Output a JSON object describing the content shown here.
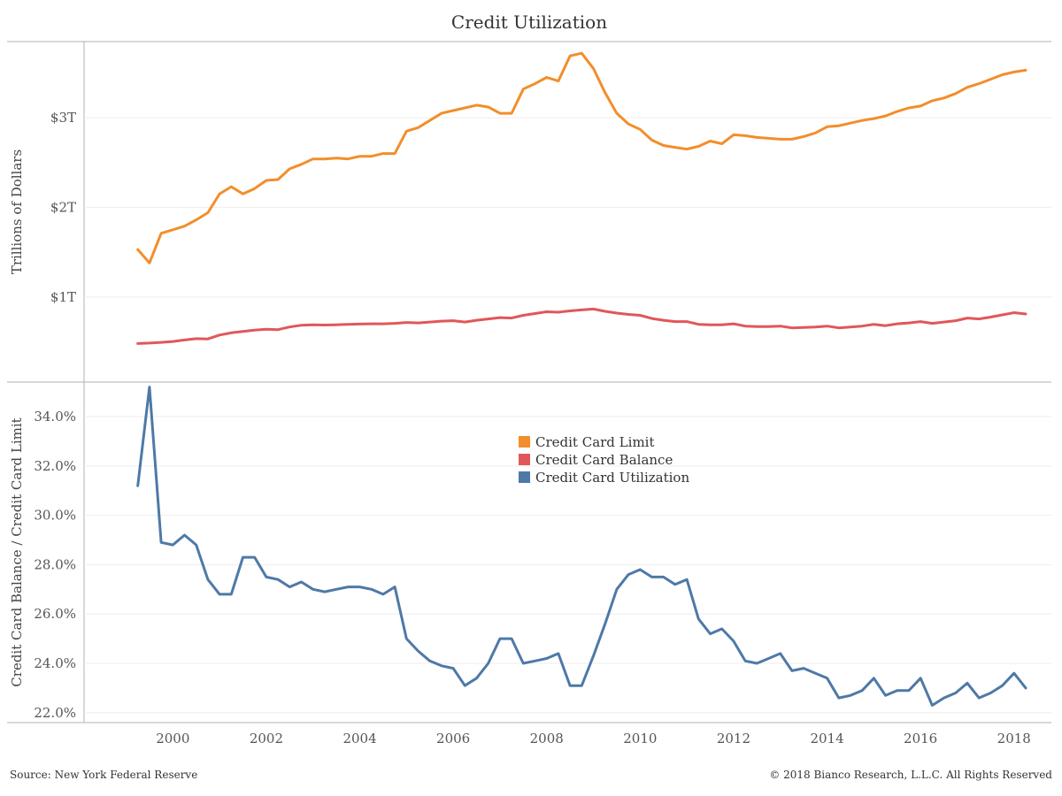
{
  "colors": {
    "limit": "#f28e2b",
    "balance": "#e15759",
    "utilization": "#4e79a7",
    "frame": "#b0b0b0",
    "gridline": "#eeeeee",
    "text": "#333333"
  },
  "chart_data": [
    {
      "type": "line",
      "title": "Credit Utilization",
      "ylabel": "Trillions of Dollars",
      "xlabel": "",
      "x_unit": "year",
      "xlim": [
        1998.1,
        2018.8
      ],
      "ylim": [
        0.05,
        3.85
      ],
      "y_ticks": [
        {
          "value": 1,
          "label": "$1T"
        },
        {
          "value": 2,
          "label": "$2T"
        },
        {
          "value": 3,
          "label": "$3T"
        }
      ],
      "grid": true,
      "series": [
        {
          "name": "Credit Card Limit",
          "color_key": "limit",
          "points": [
            [
              1999.25,
              1.53
            ],
            [
              1999.5,
              1.38
            ],
            [
              1999.75,
              1.71
            ],
            [
              2000.0,
              1.75
            ],
            [
              2000.25,
              1.79
            ],
            [
              2000.5,
              1.86
            ],
            [
              2000.75,
              1.94
            ],
            [
              2001.0,
              2.15
            ],
            [
              2001.25,
              2.23
            ],
            [
              2001.5,
              2.15
            ],
            [
              2001.75,
              2.21
            ],
            [
              2002.0,
              2.3
            ],
            [
              2002.25,
              2.31
            ],
            [
              2002.5,
              2.43
            ],
            [
              2002.75,
              2.48
            ],
            [
              2003.0,
              2.54
            ],
            [
              2003.25,
              2.54
            ],
            [
              2003.5,
              2.55
            ],
            [
              2003.75,
              2.54
            ],
            [
              2004.0,
              2.57
            ],
            [
              2004.25,
              2.57
            ],
            [
              2004.5,
              2.6
            ],
            [
              2004.75,
              2.6
            ],
            [
              2005.0,
              2.85
            ],
            [
              2005.25,
              2.89
            ],
            [
              2005.5,
              2.97
            ],
            [
              2005.75,
              3.05
            ],
            [
              2006.0,
              3.08
            ],
            [
              2006.25,
              3.11
            ],
            [
              2006.5,
              3.14
            ],
            [
              2006.75,
              3.12
            ],
            [
              2007.0,
              3.05
            ],
            [
              2007.25,
              3.05
            ],
            [
              2007.5,
              3.32
            ],
            [
              2007.75,
              3.38
            ],
            [
              2008.0,
              3.45
            ],
            [
              2008.25,
              3.41
            ],
            [
              2008.5,
              3.69
            ],
            [
              2008.75,
              3.72
            ],
            [
              2009.0,
              3.55
            ],
            [
              2009.25,
              3.28
            ],
            [
              2009.5,
              3.05
            ],
            [
              2009.75,
              2.93
            ],
            [
              2010.0,
              2.87
            ],
            [
              2010.25,
              2.75
            ],
            [
              2010.5,
              2.69
            ],
            [
              2010.75,
              2.67
            ],
            [
              2011.0,
              2.65
            ],
            [
              2011.25,
              2.68
            ],
            [
              2011.5,
              2.74
            ],
            [
              2011.75,
              2.71
            ],
            [
              2012.0,
              2.81
            ],
            [
              2012.25,
              2.8
            ],
            [
              2012.5,
              2.78
            ],
            [
              2012.75,
              2.77
            ],
            [
              2013.0,
              2.76
            ],
            [
              2013.25,
              2.76
            ],
            [
              2013.5,
              2.79
            ],
            [
              2013.75,
              2.83
            ],
            [
              2014.0,
              2.9
            ],
            [
              2014.25,
              2.91
            ],
            [
              2014.5,
              2.94
            ],
            [
              2014.75,
              2.97
            ],
            [
              2015.0,
              2.99
            ],
            [
              2015.25,
              3.02
            ],
            [
              2015.5,
              3.07
            ],
            [
              2015.75,
              3.11
            ],
            [
              2016.0,
              3.13
            ],
            [
              2016.25,
              3.19
            ],
            [
              2016.5,
              3.22
            ],
            [
              2016.75,
              3.27
            ],
            [
              2017.0,
              3.34
            ],
            [
              2017.25,
              3.38
            ],
            [
              2017.5,
              3.43
            ],
            [
              2017.75,
              3.48
            ],
            [
              2018.0,
              3.51
            ],
            [
              2018.25,
              3.53
            ]
          ]
        },
        {
          "name": "Credit Card Balance",
          "color_key": "balance",
          "points": [
            [
              1999.25,
              0.48
            ],
            [
              1999.5,
              0.485
            ],
            [
              1999.75,
              0.493
            ],
            [
              2000.0,
              0.503
            ],
            [
              2000.25,
              0.52
            ],
            [
              2000.5,
              0.535
            ],
            [
              2000.75,
              0.532
            ],
            [
              2001.0,
              0.575
            ],
            [
              2001.25,
              0.6
            ],
            [
              2001.5,
              0.615
            ],
            [
              2001.75,
              0.63
            ],
            [
              2002.0,
              0.64
            ],
            [
              2002.25,
              0.635
            ],
            [
              2002.5,
              0.665
            ],
            [
              2002.75,
              0.685
            ],
            [
              2003.0,
              0.69
            ],
            [
              2003.25,
              0.687
            ],
            [
              2003.5,
              0.69
            ],
            [
              2003.75,
              0.695
            ],
            [
              2004.0,
              0.697
            ],
            [
              2004.25,
              0.7
            ],
            [
              2004.5,
              0.7
            ],
            [
              2004.75,
              0.705
            ],
            [
              2005.0,
              0.715
            ],
            [
              2005.25,
              0.71
            ],
            [
              2005.5,
              0.72
            ],
            [
              2005.75,
              0.73
            ],
            [
              2006.0,
              0.735
            ],
            [
              2006.25,
              0.72
            ],
            [
              2006.5,
              0.74
            ],
            [
              2006.75,
              0.755
            ],
            [
              2007.0,
              0.77
            ],
            [
              2007.25,
              0.765
            ],
            [
              2007.5,
              0.795
            ],
            [
              2007.75,
              0.815
            ],
            [
              2008.0,
              0.835
            ],
            [
              2008.25,
              0.83
            ],
            [
              2008.5,
              0.845
            ],
            [
              2008.75,
              0.855
            ],
            [
              2009.0,
              0.865
            ],
            [
              2009.25,
              0.84
            ],
            [
              2009.5,
              0.82
            ],
            [
              2009.75,
              0.805
            ],
            [
              2010.0,
              0.795
            ],
            [
              2010.25,
              0.76
            ],
            [
              2010.5,
              0.74
            ],
            [
              2010.75,
              0.725
            ],
            [
              2011.0,
              0.725
            ],
            [
              2011.25,
              0.695
            ],
            [
              2011.5,
              0.69
            ],
            [
              2011.75,
              0.69
            ],
            [
              2012.0,
              0.7
            ],
            [
              2012.25,
              0.675
            ],
            [
              2012.5,
              0.67
            ],
            [
              2012.75,
              0.67
            ],
            [
              2013.0,
              0.675
            ],
            [
              2013.25,
              0.655
            ],
            [
              2013.5,
              0.66
            ],
            [
              2013.75,
              0.665
            ],
            [
              2014.0,
              0.675
            ],
            [
              2014.25,
              0.655
            ],
            [
              2014.5,
              0.665
            ],
            [
              2014.75,
              0.675
            ],
            [
              2015.0,
              0.695
            ],
            [
              2015.25,
              0.68
            ],
            [
              2015.5,
              0.7
            ],
            [
              2015.75,
              0.71
            ],
            [
              2016.0,
              0.725
            ],
            [
              2016.25,
              0.705
            ],
            [
              2016.5,
              0.72
            ],
            [
              2016.75,
              0.735
            ],
            [
              2017.0,
              0.765
            ],
            [
              2017.25,
              0.755
            ],
            [
              2017.5,
              0.775
            ],
            [
              2017.75,
              0.8
            ],
            [
              2018.0,
              0.825
            ],
            [
              2018.25,
              0.81
            ]
          ]
        }
      ]
    },
    {
      "type": "line",
      "title": "",
      "ylabel": "Credit Card Balance / Credit Card Limit",
      "xlabel": "",
      "x_unit": "year",
      "xlim": [
        1998.1,
        2018.8
      ],
      "ylim": [
        21.6,
        35.4
      ],
      "y_ticks": [
        {
          "value": 22,
          "label": "22.0%"
        },
        {
          "value": 24,
          "label": "24.0%"
        },
        {
          "value": 26,
          "label": "26.0%"
        },
        {
          "value": 28,
          "label": "28.0%"
        },
        {
          "value": 30,
          "label": "30.0%"
        },
        {
          "value": 32,
          "label": "32.0%"
        },
        {
          "value": 34,
          "label": "34.0%"
        }
      ],
      "x_ticks": [
        {
          "value": 2000,
          "label": "2000"
        },
        {
          "value": 2002,
          "label": "2002"
        },
        {
          "value": 2004,
          "label": "2004"
        },
        {
          "value": 2006,
          "label": "2006"
        },
        {
          "value": 2008,
          "label": "2008"
        },
        {
          "value": 2010,
          "label": "2010"
        },
        {
          "value": 2012,
          "label": "2012"
        },
        {
          "value": 2014,
          "label": "2014"
        },
        {
          "value": 2016,
          "label": "2016"
        },
        {
          "value": 2018,
          "label": "2018"
        }
      ],
      "grid": true,
      "series": [
        {
          "name": "Credit Card Utilization",
          "color_key": "utilization",
          "points": [
            [
              1999.25,
              31.2
            ],
            [
              1999.5,
              35.2
            ],
            [
              1999.75,
              28.9
            ],
            [
              2000.0,
              28.8
            ],
            [
              2000.25,
              29.2
            ],
            [
              2000.5,
              28.8
            ],
            [
              2000.75,
              27.4
            ],
            [
              2001.0,
              26.8
            ],
            [
              2001.25,
              26.8
            ],
            [
              2001.5,
              28.3
            ],
            [
              2001.75,
              28.3
            ],
            [
              2002.0,
              27.5
            ],
            [
              2002.25,
              27.4
            ],
            [
              2002.5,
              27.1
            ],
            [
              2002.75,
              27.3
            ],
            [
              2003.0,
              27.0
            ],
            [
              2003.25,
              26.9
            ],
            [
              2003.5,
              27.0
            ],
            [
              2003.75,
              27.1
            ],
            [
              2004.0,
              27.1
            ],
            [
              2004.25,
              27.0
            ],
            [
              2004.5,
              26.8
            ],
            [
              2004.75,
              27.1
            ],
            [
              2005.0,
              25.0
            ],
            [
              2005.25,
              24.5
            ],
            [
              2005.5,
              24.1
            ],
            [
              2005.75,
              23.9
            ],
            [
              2006.0,
              23.8
            ],
            [
              2006.25,
              23.1
            ],
            [
              2006.5,
              23.4
            ],
            [
              2006.75,
              24.0
            ],
            [
              2007.0,
              25.0
            ],
            [
              2007.25,
              25.0
            ],
            [
              2007.5,
              24.0
            ],
            [
              2007.75,
              24.1
            ],
            [
              2008.0,
              24.2
            ],
            [
              2008.25,
              24.4
            ],
            [
              2008.5,
              23.1
            ],
            [
              2008.75,
              23.1
            ],
            [
              2009.0,
              24.3
            ],
            [
              2009.25,
              25.6
            ],
            [
              2009.5,
              27.0
            ],
            [
              2009.75,
              27.6
            ],
            [
              2010.0,
              27.8
            ],
            [
              2010.25,
              27.5
            ],
            [
              2010.5,
              27.5
            ],
            [
              2010.75,
              27.2
            ],
            [
              2011.0,
              27.4
            ],
            [
              2011.25,
              25.8
            ],
            [
              2011.5,
              25.2
            ],
            [
              2011.75,
              25.4
            ],
            [
              2012.0,
              24.9
            ],
            [
              2012.25,
              24.1
            ],
            [
              2012.5,
              24.0
            ],
            [
              2012.75,
              24.2
            ],
            [
              2013.0,
              24.4
            ],
            [
              2013.25,
              23.7
            ],
            [
              2013.5,
              23.8
            ],
            [
              2013.75,
              23.6
            ],
            [
              2014.0,
              23.4
            ],
            [
              2014.25,
              22.6
            ],
            [
              2014.5,
              22.7
            ],
            [
              2014.75,
              22.9
            ],
            [
              2015.0,
              23.4
            ],
            [
              2015.25,
              22.7
            ],
            [
              2015.5,
              22.9
            ],
            [
              2015.75,
              22.9
            ],
            [
              2016.0,
              23.4
            ],
            [
              2016.25,
              22.3
            ],
            [
              2016.5,
              22.6
            ],
            [
              2016.75,
              22.8
            ],
            [
              2017.0,
              23.2
            ],
            [
              2017.25,
              22.6
            ],
            [
              2017.5,
              22.8
            ],
            [
              2017.75,
              23.1
            ],
            [
              2018.0,
              23.6
            ],
            [
              2018.25,
              23.0
            ]
          ]
        }
      ]
    }
  ],
  "legend": {
    "placement": "inside lower panel, upper-center",
    "items": [
      {
        "label": "Credit Card Limit",
        "color_key": "limit"
      },
      {
        "label": "Credit Card Balance",
        "color_key": "balance"
      },
      {
        "label": "Credit Card Utilization",
        "color_key": "utilization"
      }
    ]
  },
  "footer": {
    "source": "Source: New York Federal Reserve",
    "copyright": "© 2018 Bianco Research, L.L.C. All Rights Reserved"
  }
}
